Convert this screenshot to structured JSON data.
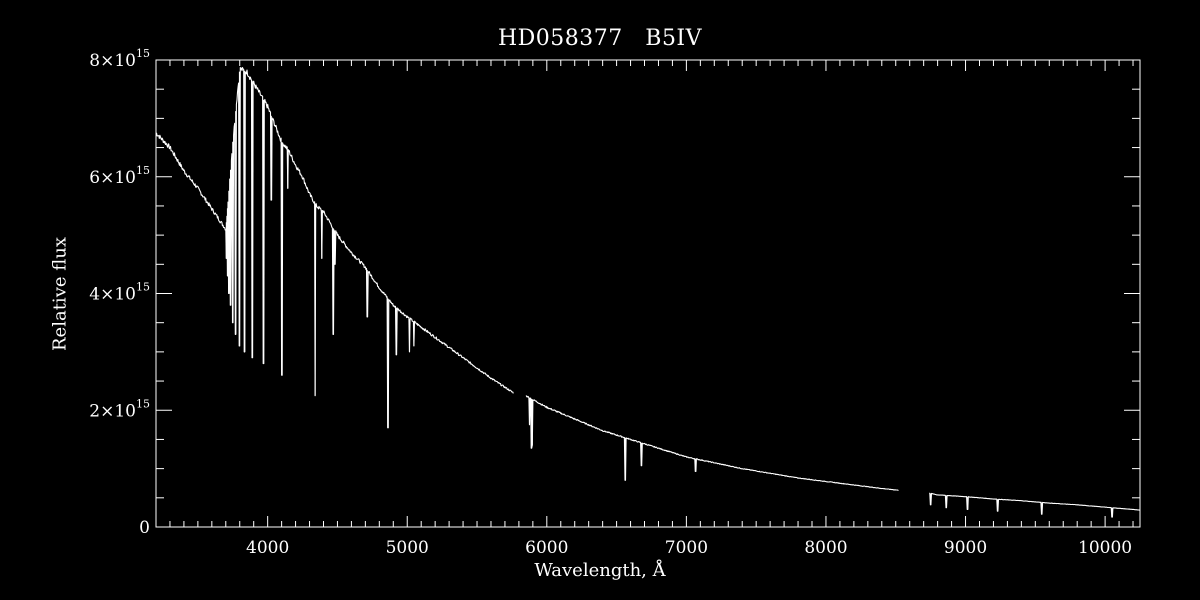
{
  "chart_data": {
    "type": "line",
    "title": "HD058377   B5IV",
    "xlabel": "Wavelength, Å",
    "ylabel": "Relative flux",
    "xlim": [
      3200,
      10250
    ],
    "ylim": [
      0,
      8000000000000000.0
    ],
    "x_ticks": [
      4000,
      5000,
      6000,
      7000,
      8000,
      9000,
      10000
    ],
    "x_tick_labels": [
      "4000",
      "5000",
      "6000",
      "7000",
      "8000",
      "9000",
      "10000"
    ],
    "y_ticks": [
      0,
      2000000000000000.0,
      4000000000000000.0,
      6000000000000000.0,
      8000000000000000.0
    ],
    "y_tick_labels": [
      {
        "base": "0",
        "exp": ""
      },
      {
        "base": "2×10",
        "exp": "15"
      },
      {
        "base": "4×10",
        "exp": "15"
      },
      {
        "base": "6×10",
        "exp": "15"
      },
      {
        "base": "8×10",
        "exp": "15"
      }
    ],
    "grid": false,
    "series_color": "#ffffff",
    "continuum": [
      [
        3200,
        6750000000000000.0
      ],
      [
        3300,
        6500000000000000.0
      ],
      [
        3400,
        6100000000000000.0
      ],
      [
        3500,
        5800000000000000.0
      ],
      [
        3600,
        5450000000000000.0
      ],
      [
        3700,
        5100000000000000.0
      ],
      [
        3750,
        6600000000000000.0
      ],
      [
        3800,
        7850000000000000.0
      ],
      [
        3850,
        7800000000000000.0
      ],
      [
        3900,
        7600000000000000.0
      ],
      [
        3950,
        7400000000000000.0
      ],
      [
        4000,
        7200000000000000.0
      ],
      [
        4050,
        6900000000000000.0
      ],
      [
        4100,
        6600000000000000.0
      ],
      [
        4150,
        6450000000000000.0
      ],
      [
        4200,
        6200000000000000.0
      ],
      [
        4250,
        6000000000000000.0
      ],
      [
        4300,
        5700000000000000.0
      ],
      [
        4350,
        5500000000000000.0
      ],
      [
        4400,
        5400000000000000.0
      ],
      [
        4500,
        5000000000000000.0
      ],
      [
        4600,
        4700000000000000.0
      ],
      [
        4700,
        4450000000000000.0
      ],
      [
        4800,
        4100000000000000.0
      ],
      [
        4900,
        3800000000000000.0
      ],
      [
        5000,
        3600000000000000.0
      ],
      [
        5200,
        3250000000000000.0
      ],
      [
        5400,
        2900000000000000.0
      ],
      [
        5600,
        2550000000000000.0
      ],
      [
        5760,
        2300000000000000.0
      ],
      [
        5850,
        2250000000000000.0
      ],
      [
        6000,
        2050000000000000.0
      ],
      [
        6200,
        1850000000000000.0
      ],
      [
        6400,
        1650000000000000.0
      ],
      [
        6600,
        1500000000000000.0
      ],
      [
        6800,
        1350000000000000.0
      ],
      [
        7000,
        1200000000000000.0
      ],
      [
        7200,
        1100000000000000.0
      ],
      [
        7400,
        1000000000000000.0
      ],
      [
        7600,
        920000000000000.0
      ],
      [
        7800,
        840000000000000.0
      ],
      [
        8000,
        780000000000000.0
      ],
      [
        8200,
        720000000000000.0
      ],
      [
        8400,
        660000000000000.0
      ],
      [
        8520,
        630000000000000.0
      ],
      [
        8740,
        580000000000000.0
      ],
      [
        8800,
        550000000000000.0
      ],
      [
        9000,
        520000000000000.0
      ],
      [
        9200,
        480000000000000.0
      ],
      [
        9400,
        450000000000000.0
      ],
      [
        9600,
        410000000000000.0
      ],
      [
        9800,
        380000000000000.0
      ],
      [
        10000,
        340000000000000.0
      ],
      [
        10250,
        290000000000000.0
      ]
    ],
    "gaps": [
      [
        5760,
        5850
      ],
      [
        8520,
        8740
      ]
    ],
    "absorption_lines": [
      [
        3704,
        4600000000000000.0
      ],
      [
        3712,
        4300000000000000.0
      ],
      [
        3722,
        4000000000000000.0
      ],
      [
        3734,
        3800000000000000.0
      ],
      [
        3750,
        3500000000000000.0
      ],
      [
        3771,
        3300000000000000.0
      ],
      [
        3798,
        3100000000000000.0
      ],
      [
        3835,
        3000000000000000.0
      ],
      [
        3889,
        2900000000000000.0
      ],
      [
        3970,
        2800000000000000.0
      ],
      [
        4026,
        5600000000000000.0
      ],
      [
        4102,
        2600000000000000.0
      ],
      [
        4144,
        5800000000000000.0
      ],
      [
        4340,
        2250000000000000.0
      ],
      [
        4388,
        4600000000000000.0
      ],
      [
        4471,
        3300000000000000.0
      ],
      [
        4481,
        4500000000000000.0
      ],
      [
        4713,
        3600000000000000.0
      ],
      [
        4861,
        1700000000000000.0
      ],
      [
        4922,
        2950000000000000.0
      ],
      [
        5016,
        3000000000000000.0
      ],
      [
        5048,
        3100000000000000.0
      ],
      [
        5876,
        1750000000000000.0
      ],
      [
        5890,
        1350000000000000.0
      ],
      [
        5896,
        1400000000000000.0
      ],
      [
        6563,
        800000000000000.0
      ],
      [
        6678,
        1050000000000000.0
      ],
      [
        7065,
        950000000000000.0
      ],
      [
        8750,
        380000000000000.0
      ],
      [
        8863,
        330000000000000.0
      ],
      [
        9015,
        300000000000000.0
      ],
      [
        9229,
        270000000000000.0
      ],
      [
        9546,
        220000000000000.0
      ],
      [
        10049,
        170000000000000.0
      ]
    ]
  }
}
